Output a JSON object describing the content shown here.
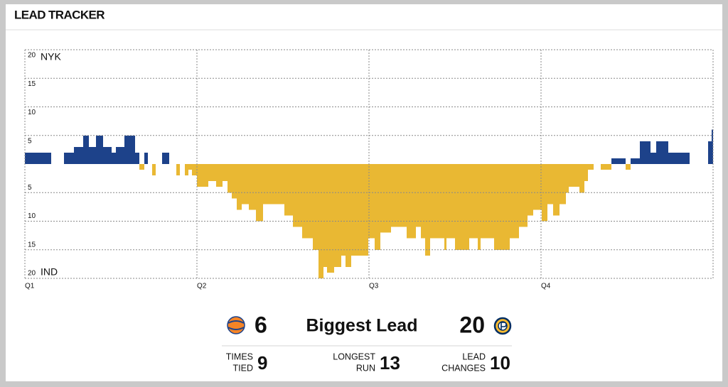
{
  "header": {
    "title": "LEAD TRACKER"
  },
  "chart_data": {
    "type": "bar",
    "top_label": "NYK",
    "bottom_label": "IND",
    "color_above": "#1d428a",
    "color_below": "#e9b833",
    "x": [
      0,
      1.83,
      2.73,
      3.42,
      4.07,
      4.46,
      4.96,
      5.45,
      6.05,
      6.35,
      6.94,
      7.69,
      7.98,
      8.33,
      8.58,
      8.87,
      9.12,
      9.57,
      10.07,
      10.56,
      10.81,
      11.16,
      11.4,
      11.65,
      12,
      12.79,
      13.34,
      13.78,
      14.13,
      14.43,
      14.78,
      15.12,
      15.62,
      16.11,
      16.61,
      18.1,
      18.69,
      19.34,
      20.08,
      20.48,
      20.82,
      21.07,
      21.57,
      22.06,
      22.36,
      22.76,
      23.95,
      24.39,
      24.79,
      25.54,
      26.63,
      27.27,
      27.62,
      27.92,
      28.26,
      29.25,
      29.4,
      30,
      30.99,
      31.58,
      31.78,
      32.73,
      33.82,
      34.46,
      35.06,
      35.45,
      36.05,
      36.44,
      36.84,
      37.29,
      37.73,
      37.93,
      38.67,
      39.02,
      39.27,
      39.67,
      40.16,
      40.91,
      41.9,
      42.25,
      42.89,
      43.63,
      44.03,
      44.87,
      46.36,
      47.65,
      47.9
    ],
    "values": [
      2,
      0,
      2,
      3,
      5,
      3,
      5,
      3,
      2,
      3,
      5,
      2,
      -1,
      2,
      0,
      -2,
      0,
      2,
      0,
      -2,
      0,
      -2,
      -1,
      -2,
      -4,
      -3,
      -4,
      -3,
      -5,
      -6,
      -8,
      -7,
      -8,
      -10,
      -7,
      -9,
      -11,
      -13,
      -15,
      -20,
      -18,
      -19,
      -18,
      -16,
      -18,
      -16,
      -13,
      -15,
      -12,
      -11,
      -13,
      -11,
      -13,
      -16,
      -13,
      -15,
      -13,
      -15,
      -13,
      -15,
      -13,
      -15,
      -13,
      -11,
      -9,
      -8,
      -10,
      -7,
      -9,
      -7,
      -5,
      -4,
      -5,
      -3,
      -1,
      0,
      -1,
      1,
      -1,
      1,
      4,
      2,
      4,
      2,
      0,
      4,
      6
    ],
    "xlim": [
      0,
      48
    ],
    "xticks": [
      {
        "value": 0,
        "label": "Q1"
      },
      {
        "value": 12,
        "label": "Q2"
      },
      {
        "value": 24,
        "label": "Q3"
      },
      {
        "value": 36,
        "label": "Q4"
      }
    ],
    "ylim": [
      -20,
      20
    ],
    "yticks": [
      20,
      15,
      10,
      5,
      {
        "value": -5,
        "label": "5"
      },
      {
        "value": -10,
        "label": "10"
      },
      {
        "value": -15,
        "label": "15"
      },
      {
        "value": -20,
        "label": "20"
      }
    ],
    "grid": true
  },
  "stats": {
    "biggest_lead": {
      "label": "Biggest Lead",
      "nyk": 6,
      "ind": 20
    },
    "items": [
      {
        "label_lines": [
          "TIMES",
          "TIED"
        ],
        "value": 9
      },
      {
        "label_lines": [
          "LONGEST",
          "RUN"
        ],
        "value": 13
      },
      {
        "label_lines": [
          "LEAD",
          "CHANGES"
        ],
        "value": 10
      }
    ]
  }
}
